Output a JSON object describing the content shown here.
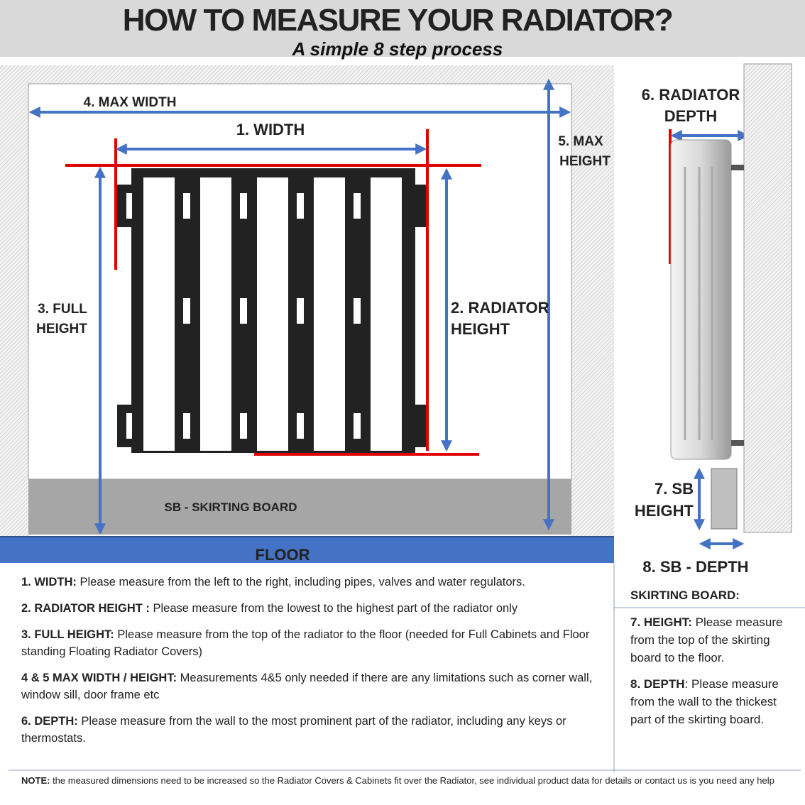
{
  "header": {
    "title": "HOW TO MEASURE YOUR RADIATOR?",
    "subtitle": "A simple 8 step process"
  },
  "diagram": {
    "max_width": "4. MAX WIDTH",
    "width": "1. WIDTH",
    "max_height": [
      "5. MAX",
      "HEIGHT"
    ],
    "full_height": [
      "3. FULL",
      "HEIGHT"
    ],
    "radiator_height": [
      "2. RADIATOR",
      "HEIGHT"
    ],
    "skirting_board": "SB - SKIRTING BOARD",
    "floor": "FLOOR",
    "radiator_depth": [
      "6. RADIATOR",
      "DEPTH"
    ],
    "sb_height": [
      "7. SB",
      "HEIGHT"
    ],
    "sb_depth": "8. SB - DEPTH"
  },
  "colors": {
    "measure_arrow": "#4472c4",
    "red_line": "#e00000",
    "floor": "#4472c4",
    "skirting": "#a6a6a6",
    "header_bg": "#d9d9d9"
  },
  "instructions": [
    {
      "label": "1. WIDTH:",
      "text": " Please measure from the left to the right, including pipes, valves and water regulators."
    },
    {
      "label": "2. RADIATOR HEIGHT :",
      "text": " Please measure from the lowest to the highest part of the radiator only"
    },
    {
      "label": "3. FULL HEIGHT:",
      "text": " Please measure from the top of the radiator to the floor (needed for Full Cabinets and Floor standing Floating Radiator Covers)"
    },
    {
      "label": "4 & 5 MAX WIDTH / HEIGHT:",
      "text": " Measurements 4&5 only needed if there are any limitations such as corner wall, window sill, door frame etc"
    },
    {
      "label": "6. DEPTH:",
      "text": " Please measure from the wall to the most prominent part of the radiator, including any keys or thermostats."
    }
  ],
  "skirting": {
    "heading": "SKIRTING BOARD:",
    "items": [
      {
        "label": "7. HEIGHT:",
        "text": "  Please measure from the top of the skirting board to the floor."
      },
      {
        "label": "8. DEPTH",
        "text": ":  Please measure from the wall to the thickest part of the skirting board."
      }
    ]
  },
  "note": {
    "label": "NOTE:",
    "text": " the measured dimensions need to be increased so the Radiator Covers & Cabinets fit over the Radiator, see individual product data for details or contact us is you need any help"
  }
}
